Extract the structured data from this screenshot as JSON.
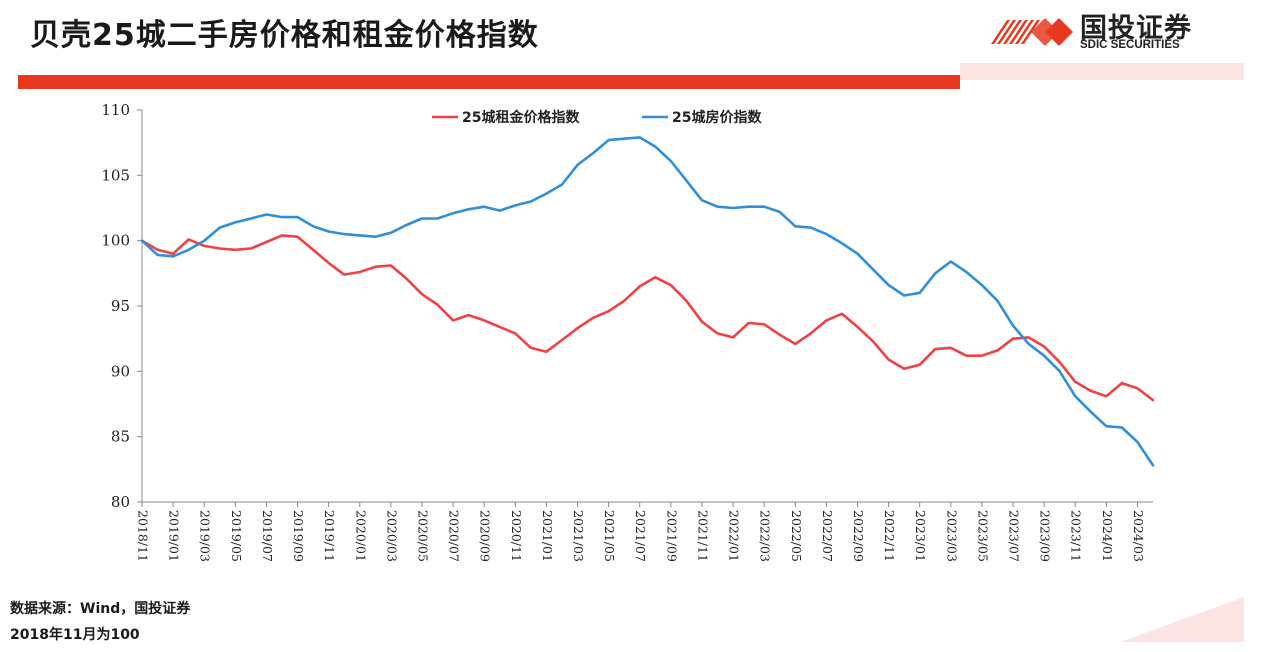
{
  "page": {
    "title": "贝壳25城二手房价格和租金价格指数",
    "logo": {
      "name_cn": "国投证券",
      "name_en": "SDIC SECURITIES"
    },
    "source": "数据来源：Wind，国投证券",
    "note": "2018年11月为100"
  },
  "colors": {
    "rent": "#f04144",
    "house": "#2f8fd9",
    "brand_red": "#e8391f",
    "axis": "#888888"
  },
  "chart_data": {
    "type": "line",
    "title": "",
    "xlabel": "",
    "ylabel": "",
    "ylim": [
      80,
      110
    ],
    "yticks": [
      80,
      85,
      90,
      95,
      100,
      105,
      110
    ],
    "grid": false,
    "legend_position": "top-center",
    "x": [
      "2018/11",
      "2018/12",
      "2019/01",
      "2019/02",
      "2019/03",
      "2019/04",
      "2019/05",
      "2019/06",
      "2019/07",
      "2019/08",
      "2019/09",
      "2019/10",
      "2019/11",
      "2019/12",
      "2020/01",
      "2020/02",
      "2020/03",
      "2020/04",
      "2020/05",
      "2020/06",
      "2020/07",
      "2020/08",
      "2020/09",
      "2020/10",
      "2020/11",
      "2020/12",
      "2021/01",
      "2021/02",
      "2021/03",
      "2021/04",
      "2021/05",
      "2021/06",
      "2021/07",
      "2021/08",
      "2021/09",
      "2021/10",
      "2021/11",
      "2021/12",
      "2022/01",
      "2022/02",
      "2022/03",
      "2022/04",
      "2022/05",
      "2022/06",
      "2022/07",
      "2022/08",
      "2022/09",
      "2022/10",
      "2022/11",
      "2022/12",
      "2023/01",
      "2023/02",
      "2023/03",
      "2023/04",
      "2023/05",
      "2023/06",
      "2023/07",
      "2023/08",
      "2023/09",
      "2023/10",
      "2023/11",
      "2023/12",
      "2024/01",
      "2024/02",
      "2024/03",
      "2024/04"
    ],
    "xtick_labels": [
      "2018/11",
      "2019/01",
      "2019/03",
      "2019/05",
      "2019/07",
      "2019/09",
      "2019/11",
      "2020/01",
      "2020/03",
      "2020/05",
      "2020/07",
      "2020/09",
      "2020/11",
      "2021/01",
      "2021/03",
      "2021/05",
      "2021/07",
      "2021/09",
      "2021/11",
      "2022/01",
      "2022/03",
      "2022/05",
      "2022/07",
      "2022/09",
      "2022/11",
      "2023/01",
      "2023/03",
      "2023/05",
      "2023/07",
      "2023/09",
      "2023/11",
      "2024/01",
      "2024/03"
    ],
    "series": [
      {
        "name": "25城租金价格指数",
        "color": "#f04144",
        "values": [
          100,
          99.3,
          99.0,
          100.1,
          99.6,
          99.4,
          99.3,
          99.4,
          99.9,
          100.4,
          100.3,
          99.3,
          98.3,
          97.4,
          97.6,
          98.0,
          98.1,
          97.1,
          95.9,
          95.1,
          93.9,
          94.3,
          93.9,
          93.4,
          92.9,
          91.8,
          91.5,
          92.4,
          93.3,
          94.1,
          94.6,
          95.4,
          96.5,
          97.2,
          96.6,
          95.4,
          93.8,
          92.9,
          92.6,
          93.7,
          93.6,
          92.8,
          92.1,
          92.9,
          93.9,
          94.4,
          93.4,
          92.3,
          90.9,
          90.2,
          90.5,
          91.7,
          91.8,
          91.2,
          91.2,
          91.6,
          92.5,
          92.6,
          91.9,
          90.7,
          89.2,
          88.5,
          88.1,
          89.1,
          88.7,
          87.8
        ]
      },
      {
        "name": "25城房价指数",
        "color": "#2f8fd9",
        "values": [
          100,
          98.9,
          98.8,
          99.3,
          100.0,
          101.0,
          101.4,
          101.7,
          102.0,
          101.8,
          101.8,
          101.1,
          100.7,
          100.5,
          100.4,
          100.3,
          100.6,
          101.2,
          101.7,
          101.7,
          102.1,
          102.4,
          102.6,
          102.3,
          102.7,
          103.0,
          103.6,
          104.3,
          105.8,
          106.7,
          107.7,
          107.8,
          107.9,
          107.2,
          106.1,
          104.6,
          103.1,
          102.6,
          102.5,
          102.6,
          102.6,
          102.2,
          101.1,
          101.0,
          100.5,
          99.8,
          99.0,
          97.8,
          96.6,
          95.8,
          96.0,
          97.5,
          98.4,
          97.6,
          96.6,
          95.4,
          93.5,
          92.1,
          91.2,
          90.0,
          88.1,
          86.9,
          85.8,
          85.7,
          84.6,
          82.8
        ]
      }
    ]
  }
}
